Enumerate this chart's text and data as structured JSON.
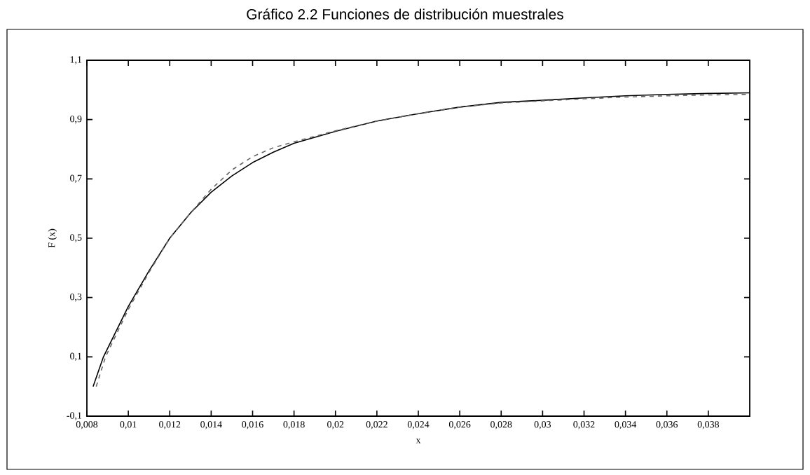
{
  "chart_data": {
    "type": "line",
    "title": "Gráfico 2.2 Funciones de distribución muestrales",
    "xlabel": "x",
    "ylabel": "F (x)",
    "xlim": [
      0.008,
      0.04
    ],
    "ylim": [
      -0.1,
      1.1
    ],
    "xticks": [
      {
        "value": 0.008,
        "label": "0,008"
      },
      {
        "value": 0.01,
        "label": "0,01"
      },
      {
        "value": 0.012,
        "label": "0,012"
      },
      {
        "value": 0.014,
        "label": "0,014"
      },
      {
        "value": 0.016,
        "label": "0,016"
      },
      {
        "value": 0.018,
        "label": "0,018"
      },
      {
        "value": 0.02,
        "label": "0,02"
      },
      {
        "value": 0.022,
        "label": "0,022"
      },
      {
        "value": 0.024,
        "label": "0,024"
      },
      {
        "value": 0.026,
        "label": "0,026"
      },
      {
        "value": 0.028,
        "label": "0,028"
      },
      {
        "value": 0.03,
        "label": "0,03"
      },
      {
        "value": 0.032,
        "label": "0,032"
      },
      {
        "value": 0.034,
        "label": "0,034"
      },
      {
        "value": 0.036,
        "label": "0,036"
      },
      {
        "value": 0.038,
        "label": "0,038"
      }
    ],
    "yticks": [
      {
        "value": -0.1,
        "label": "-0,1"
      },
      {
        "value": 0.1,
        "label": "0,1"
      },
      {
        "value": 0.3,
        "label": "0,3"
      },
      {
        "value": 0.5,
        "label": "0,5"
      },
      {
        "value": 0.7,
        "label": "0,7"
      },
      {
        "value": 0.9,
        "label": "0,9"
      },
      {
        "value": 1.1,
        "label": "1,1"
      }
    ],
    "marker": "none",
    "series": [
      {
        "color": "#000000",
        "line_style": "solid",
        "x": [
          0.0083,
          0.0088,
          0.01,
          0.011,
          0.012,
          0.013,
          0.014,
          0.015,
          0.016,
          0.017,
          0.018,
          0.02,
          0.022,
          0.024,
          0.026,
          0.028,
          0.03,
          0.032,
          0.034,
          0.036,
          0.038,
          0.04
        ],
        "values": [
          0.0,
          0.1,
          0.27,
          0.39,
          0.5,
          0.585,
          0.655,
          0.71,
          0.755,
          0.79,
          0.82,
          0.86,
          0.895,
          0.92,
          0.942,
          0.958,
          0.965,
          0.973,
          0.98,
          0.985,
          0.988,
          0.99
        ]
      },
      {
        "color": "#666666",
        "line_style": "dashed",
        "x": [
          0.00845,
          0.0089,
          0.01,
          0.011,
          0.012,
          0.013,
          0.014,
          0.015,
          0.016,
          0.017,
          0.018,
          0.02,
          0.022,
          0.024,
          0.026,
          0.028,
          0.03,
          0.032,
          0.034,
          0.036,
          0.038,
          0.04
        ],
        "values": [
          0.0,
          0.1,
          0.26,
          0.385,
          0.5,
          0.585,
          0.665,
          0.73,
          0.775,
          0.805,
          0.825,
          0.862,
          0.895,
          0.92,
          0.942,
          0.956,
          0.963,
          0.97,
          0.976,
          0.98,
          0.983,
          0.985
        ]
      }
    ]
  }
}
